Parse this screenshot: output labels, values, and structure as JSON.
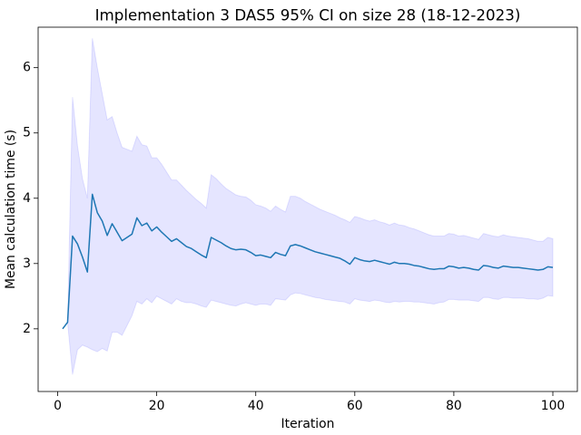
{
  "chart_data": {
    "type": "line",
    "title": "Implementation 3 DAS5 95% CI on size 28 (18-12-2023)",
    "xlabel": "Iteration",
    "ylabel": "Mean calculation time (s)",
    "x": [
      1,
      2,
      3,
      4,
      5,
      6,
      7,
      8,
      9,
      10,
      11,
      12,
      13,
      14,
      15,
      16,
      17,
      18,
      19,
      20,
      21,
      22,
      23,
      24,
      25,
      26,
      27,
      28,
      29,
      30,
      31,
      32,
      33,
      34,
      35,
      36,
      37,
      38,
      39,
      40,
      41,
      42,
      43,
      44,
      45,
      46,
      47,
      48,
      49,
      50,
      51,
      52,
      53,
      54,
      55,
      56,
      57,
      58,
      59,
      60,
      61,
      62,
      63,
      64,
      65,
      66,
      67,
      68,
      69,
      70,
      71,
      72,
      73,
      74,
      75,
      76,
      77,
      78,
      79,
      80,
      81,
      82,
      83,
      84,
      85,
      86,
      87,
      88,
      89,
      90,
      91,
      92,
      93,
      94,
      95,
      96,
      97,
      98,
      99,
      100
    ],
    "series": [
      {
        "color": "#1f77b4",
        "values": [
          2.0,
          2.1,
          3.42,
          3.3,
          3.1,
          2.87,
          4.06,
          3.78,
          3.65,
          3.43,
          3.61,
          3.48,
          3.35,
          3.4,
          3.45,
          3.7,
          3.58,
          3.62,
          3.5,
          3.56,
          3.48,
          3.41,
          3.34,
          3.38,
          3.32,
          3.26,
          3.23,
          3.18,
          3.13,
          3.09,
          3.4,
          3.36,
          3.32,
          3.27,
          3.23,
          3.21,
          3.22,
          3.21,
          3.17,
          3.12,
          3.13,
          3.11,
          3.09,
          3.17,
          3.14,
          3.12,
          3.27,
          3.29,
          3.27,
          3.24,
          3.21,
          3.18,
          3.16,
          3.14,
          3.12,
          3.1,
          3.08,
          3.04,
          2.99,
          3.09,
          3.06,
          3.04,
          3.03,
          3.05,
          3.03,
          3.01,
          2.99,
          3.02,
          3.0,
          3.0,
          2.99,
          2.97,
          2.96,
          2.94,
          2.92,
          2.91,
          2.92,
          2.92,
          2.96,
          2.95,
          2.93,
          2.94,
          2.93,
          2.91,
          2.9,
          2.97,
          2.96,
          2.94,
          2.93,
          2.96,
          2.95,
          2.94,
          2.94,
          2.93,
          2.92,
          2.91,
          2.9,
          2.91,
          2.95,
          2.94
        ]
      }
    ],
    "band": {
      "color": "#0000ff",
      "opacity": 0.1,
      "upper": [
        2.0,
        2.1,
        5.55,
        4.8,
        4.3,
        4.0,
        6.45,
        6.0,
        5.6,
        5.2,
        5.25,
        5.0,
        4.78,
        4.75,
        4.72,
        4.95,
        4.82,
        4.8,
        4.62,
        4.62,
        4.52,
        4.4,
        4.28,
        4.28,
        4.2,
        4.12,
        4.05,
        3.98,
        3.92,
        3.85,
        4.36,
        4.3,
        4.22,
        4.15,
        4.1,
        4.05,
        4.03,
        4.02,
        3.97,
        3.9,
        3.88,
        3.85,
        3.8,
        3.88,
        3.83,
        3.79,
        4.03,
        4.03,
        4.0,
        3.95,
        3.91,
        3.87,
        3.83,
        3.8,
        3.77,
        3.74,
        3.7,
        3.67,
        3.63,
        3.72,
        3.7,
        3.67,
        3.65,
        3.67,
        3.64,
        3.62,
        3.59,
        3.62,
        3.59,
        3.58,
        3.55,
        3.53,
        3.5,
        3.47,
        3.44,
        3.42,
        3.42,
        3.42,
        3.46,
        3.45,
        3.42,
        3.43,
        3.41,
        3.39,
        3.37,
        3.46,
        3.44,
        3.42,
        3.41,
        3.44,
        3.42,
        3.41,
        3.4,
        3.39,
        3.38,
        3.36,
        3.34,
        3.34,
        3.4,
        3.38
      ],
      "lower": [
        2.0,
        2.1,
        1.3,
        1.68,
        1.75,
        1.72,
        1.68,
        1.65,
        1.7,
        1.66,
        1.95,
        1.95,
        1.9,
        2.05,
        2.2,
        2.42,
        2.38,
        2.46,
        2.4,
        2.5,
        2.46,
        2.42,
        2.38,
        2.46,
        2.42,
        2.4,
        2.4,
        2.38,
        2.35,
        2.33,
        2.44,
        2.42,
        2.4,
        2.38,
        2.36,
        2.35,
        2.38,
        2.4,
        2.38,
        2.36,
        2.38,
        2.38,
        2.36,
        2.46,
        2.45,
        2.44,
        2.52,
        2.55,
        2.54,
        2.52,
        2.5,
        2.48,
        2.47,
        2.45,
        2.44,
        2.43,
        2.42,
        2.41,
        2.38,
        2.46,
        2.44,
        2.43,
        2.42,
        2.44,
        2.43,
        2.41,
        2.4,
        2.42,
        2.41,
        2.42,
        2.42,
        2.41,
        2.41,
        2.4,
        2.39,
        2.38,
        2.4,
        2.41,
        2.45,
        2.45,
        2.44,
        2.44,
        2.44,
        2.43,
        2.42,
        2.48,
        2.48,
        2.46,
        2.45,
        2.48,
        2.48,
        2.47,
        2.47,
        2.47,
        2.46,
        2.46,
        2.45,
        2.47,
        2.51,
        2.5
      ]
    },
    "xlim": [
      -3.95,
      104.95
    ],
    "ylim": [
      1.04,
      6.62
    ],
    "xticks": [
      0,
      20,
      40,
      60,
      80,
      100
    ],
    "yticks": [
      2,
      3,
      4,
      5,
      6
    ],
    "grid": false
  }
}
